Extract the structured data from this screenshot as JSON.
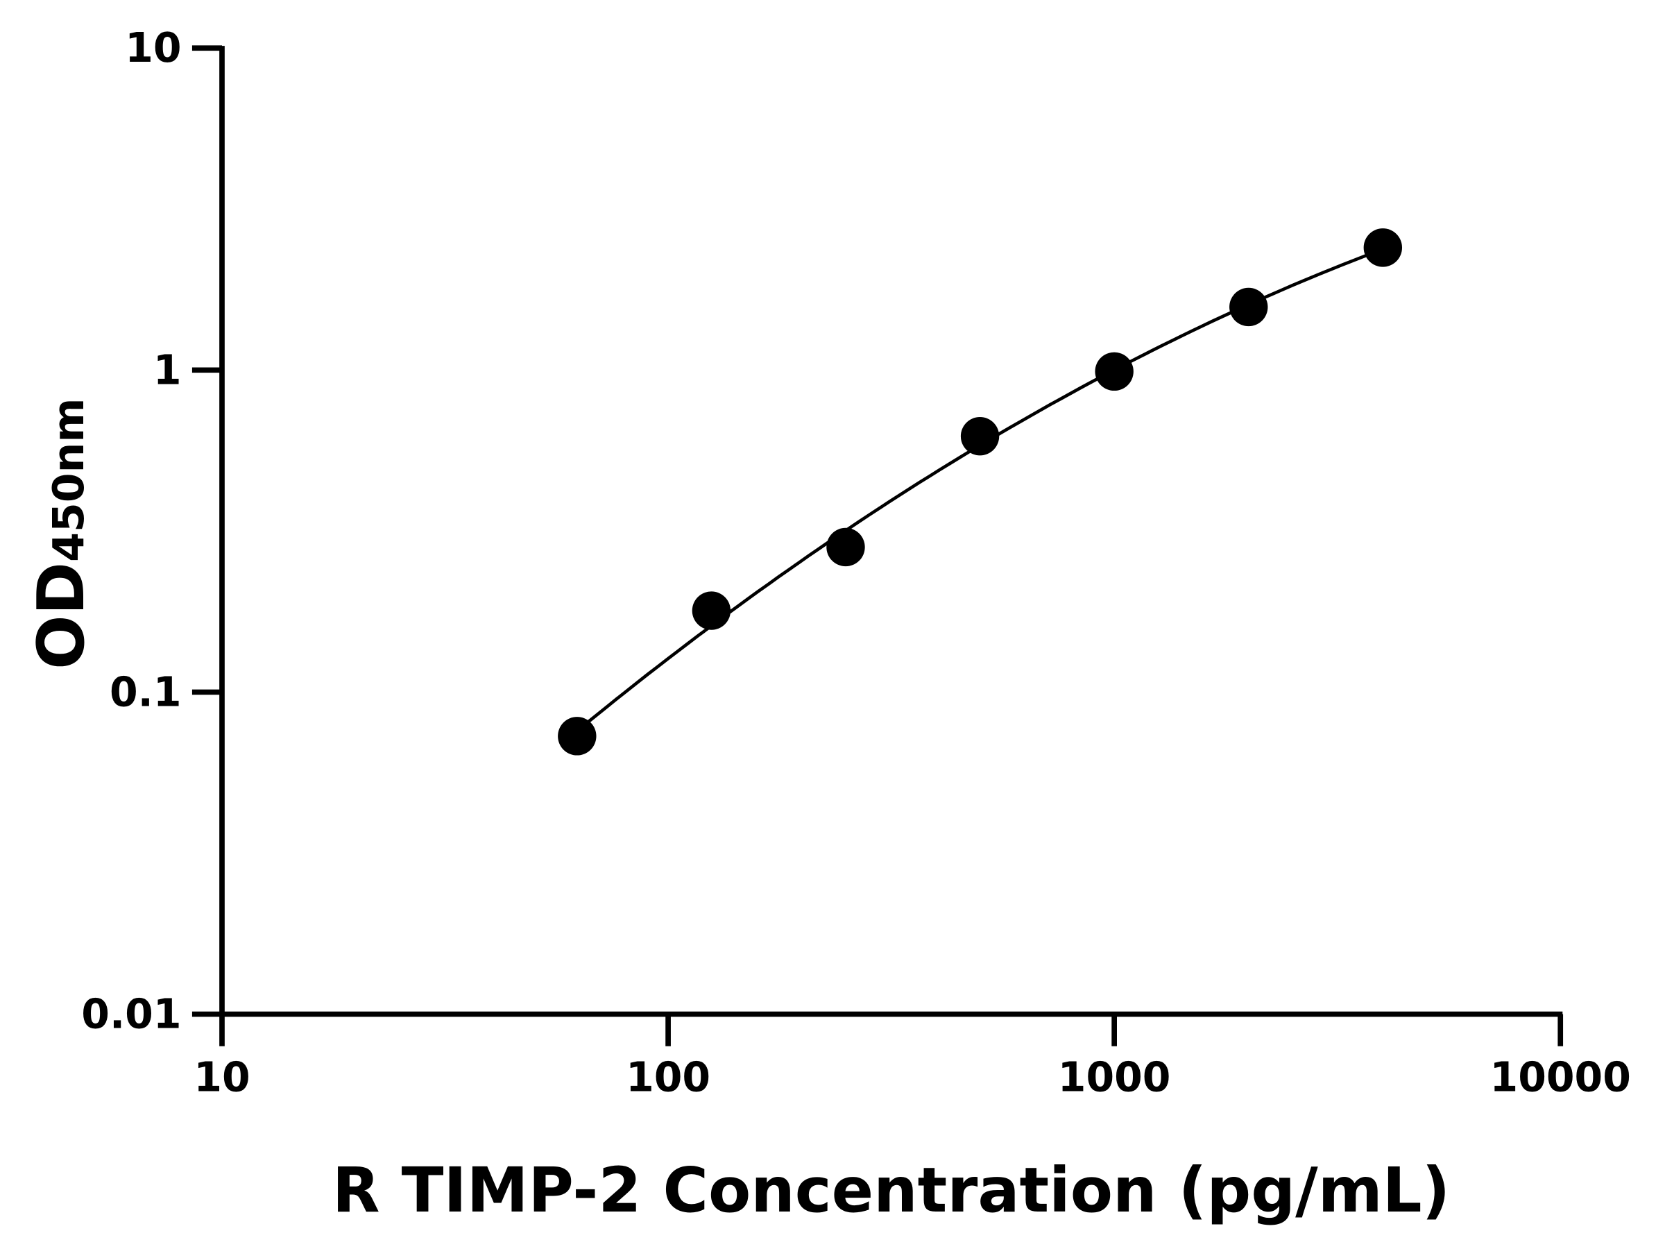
{
  "chart_data": {
    "type": "scatter",
    "title": "",
    "xlabel": "R TIMP-2 Concentration (pg/mL)",
    "ylabel": {
      "main": "OD",
      "subscript": "450nm"
    },
    "x_scale": "log",
    "y_scale": "log",
    "xlim": [
      10,
      10000
    ],
    "ylim": [
      0.01,
      10
    ],
    "x_ticks": [
      "10",
      "100",
      "1000",
      "10000"
    ],
    "y_ticks": [
      "0.01",
      "0.1",
      "1",
      "10"
    ],
    "grid": false,
    "legend": "none",
    "marker_color": "#000000",
    "series": [
      {
        "x": [
          62.5,
          125,
          250,
          500,
          1000,
          2000,
          4000
        ],
        "y": [
          0.073,
          0.179,
          0.282,
          0.623,
          0.99,
          1.57,
          2.4
        ],
        "fit_curve": true
      }
    ]
  }
}
